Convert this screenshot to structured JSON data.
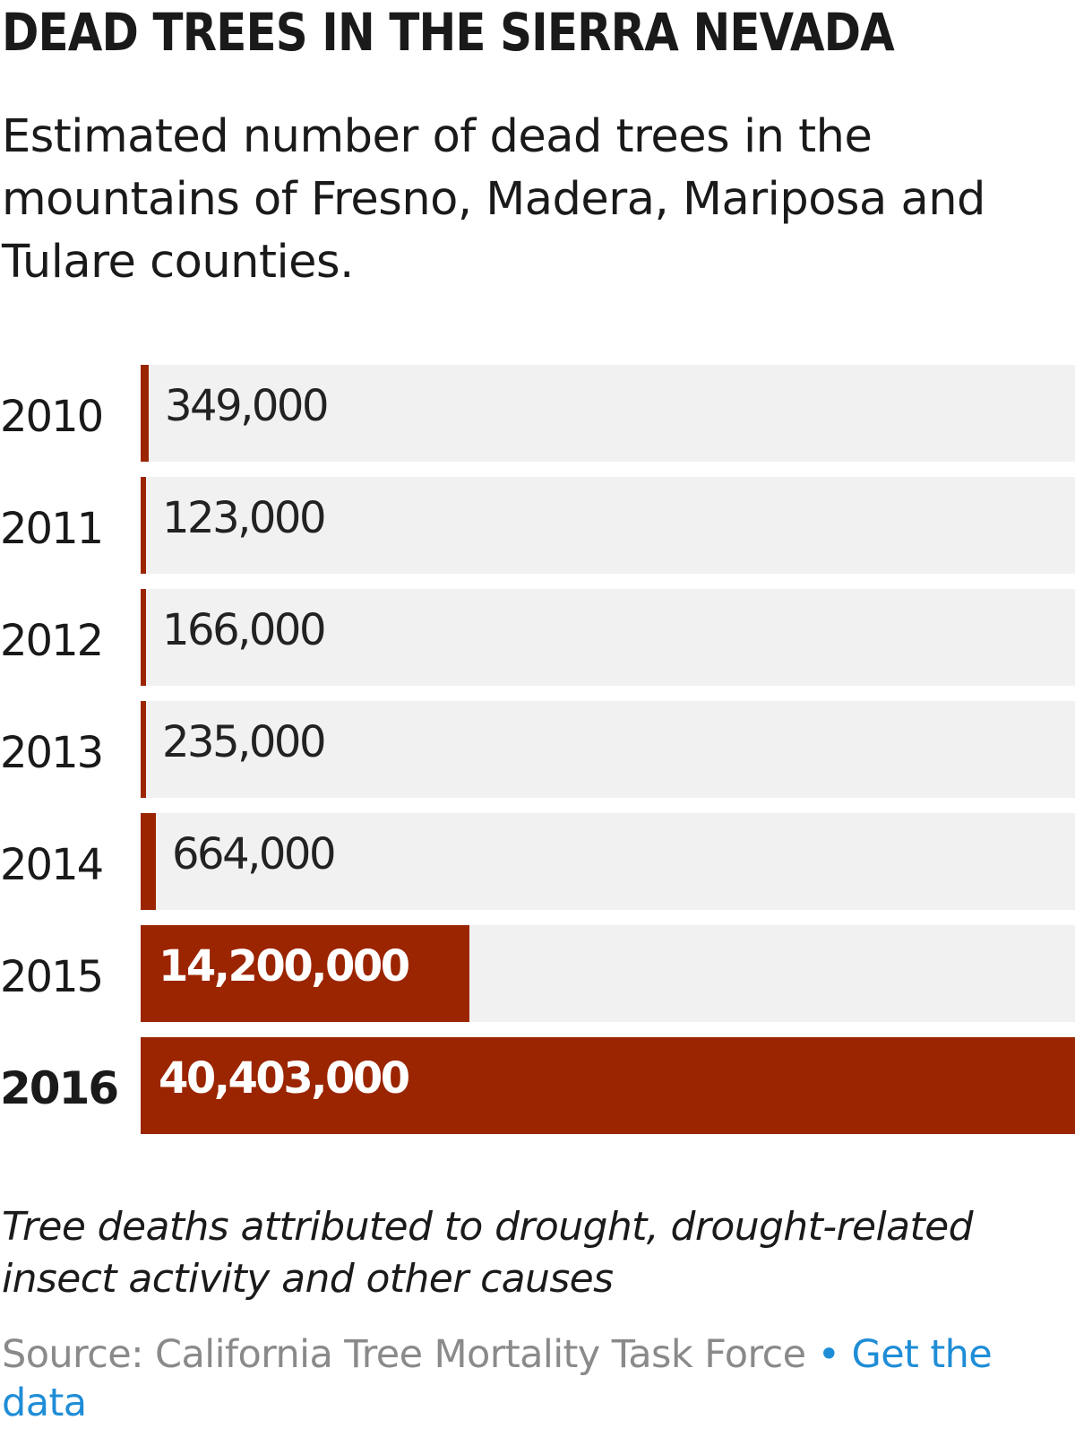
{
  "header": {
    "title": "DEAD TREES IN THE SIERRA NEVADA",
    "subtitle": "Estimated number of dead trees in the mountains of Fresno, Madera, Mariposa and Tulare counties."
  },
  "footer": {
    "note": "Tree deaths attributed to drought, drought-related insect activity and other causes",
    "source_text": "Source: California Tree Mortality Task Force",
    "separator": "•",
    "link_text": "Get the data"
  },
  "colors": {
    "bar": "#9b2500",
    "track": "#f1f1f1",
    "link": "#1f8dd6",
    "source": "#8a8a8a"
  },
  "chart_data": {
    "type": "bar",
    "orientation": "horizontal",
    "categories": [
      "2010",
      "2011",
      "2012",
      "2013",
      "2014",
      "2015",
      "2016"
    ],
    "values": [
      349000,
      123000,
      166000,
      235000,
      664000,
      14200000,
      40403000
    ],
    "value_labels": [
      "349,000",
      "123,000",
      "166,000",
      "235,000",
      "664,000",
      "14,200,000",
      "40,403,000"
    ],
    "xlim": [
      0,
      40403000
    ],
    "grid": false,
    "legend": "none"
  }
}
